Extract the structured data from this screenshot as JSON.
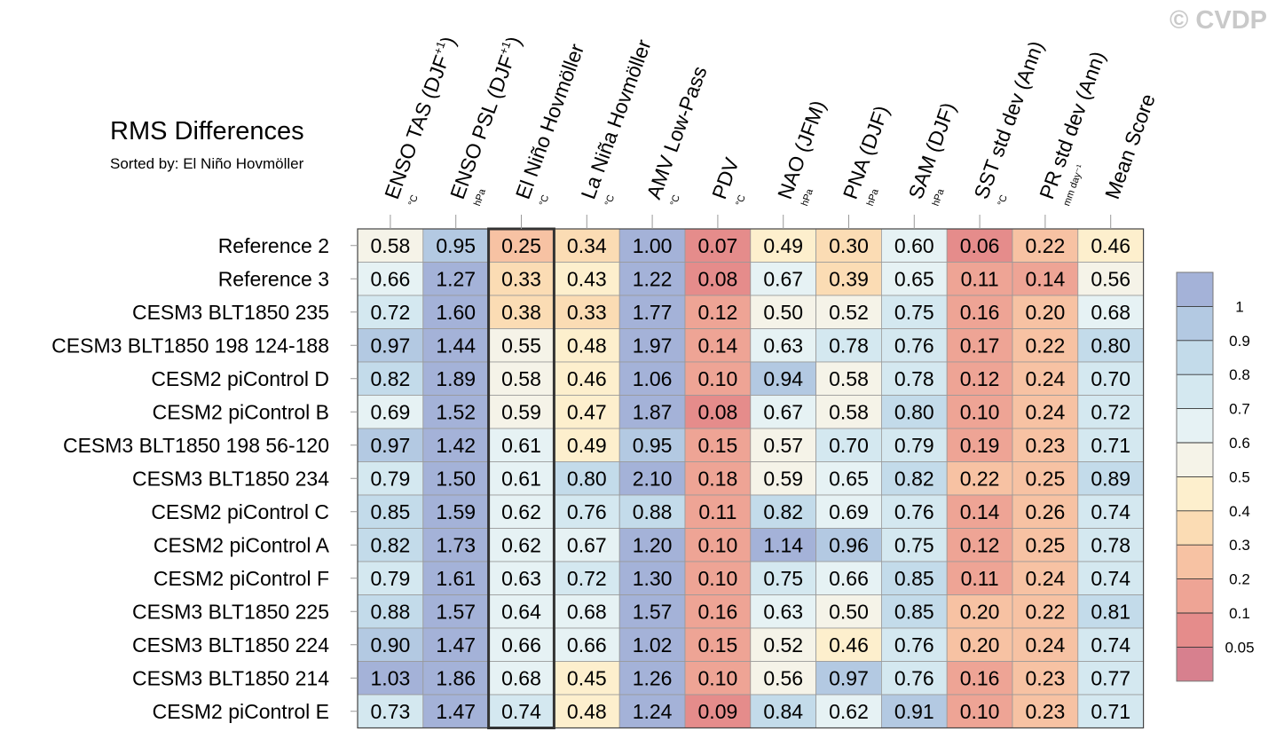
{
  "chart_data": {
    "type": "heatmap",
    "title": "RMS Differences",
    "subtitle": "Sorted by: El Niño Hovmöller",
    "watermark": "© CVDP",
    "highlight_column": 2,
    "columns": [
      {
        "label": "ENSO TAS (DJF",
        "sup": "+1",
        "close": ")",
        "unit": "°C"
      },
      {
        "label": "ENSO PSL (DJF",
        "sup": "+1",
        "close": ")",
        "unit": "hPa"
      },
      {
        "label": "El Niño Hovmöller",
        "sup": "",
        "close": "",
        "unit": "°C"
      },
      {
        "label": "La Niña Hovmöller",
        "sup": "",
        "close": "",
        "unit": "°C"
      },
      {
        "label": "AMV Low-Pass",
        "sup": "",
        "close": "",
        "unit": "°C"
      },
      {
        "label": "PDV",
        "sup": "",
        "close": "",
        "unit": "°C"
      },
      {
        "label": "NAO (JFM)",
        "sup": "",
        "close": "",
        "unit": "hPa"
      },
      {
        "label": "PNA (DJF)",
        "sup": "",
        "close": "",
        "unit": "hPa"
      },
      {
        "label": "SAM (DJF)",
        "sup": "",
        "close": "",
        "unit": "hPa"
      },
      {
        "label": "SST std dev (Ann)",
        "sup": "",
        "close": "",
        "unit": "°C"
      },
      {
        "label": "PR std dev (Ann)",
        "sup": "",
        "close": "",
        "unit": "mm day⁻¹"
      },
      {
        "label": "Mean Score",
        "sup": "",
        "close": "",
        "unit": ""
      }
    ],
    "rows": [
      {
        "name": "Reference 2",
        "values": [
          0.58,
          0.95,
          0.25,
          0.34,
          1.0,
          0.07,
          0.49,
          0.3,
          0.6,
          0.06,
          0.22,
          0.46
        ]
      },
      {
        "name": "Reference 3",
        "values": [
          0.66,
          1.27,
          0.33,
          0.43,
          1.22,
          0.08,
          0.67,
          0.39,
          0.65,
          0.11,
          0.14,
          0.56
        ]
      },
      {
        "name": "CESM3 BLT1850 235",
        "values": [
          0.72,
          1.6,
          0.38,
          0.33,
          1.77,
          0.12,
          0.5,
          0.52,
          0.75,
          0.16,
          0.2,
          0.68
        ]
      },
      {
        "name": "CESM3 BLT1850 198 124-188",
        "values": [
          0.97,
          1.44,
          0.55,
          0.48,
          1.97,
          0.14,
          0.63,
          0.78,
          0.76,
          0.17,
          0.22,
          0.8
        ]
      },
      {
        "name": "CESM2 piControl D",
        "values": [
          0.82,
          1.89,
          0.58,
          0.46,
          1.06,
          0.1,
          0.94,
          0.58,
          0.78,
          0.12,
          0.24,
          0.7
        ]
      },
      {
        "name": "CESM2 piControl B",
        "values": [
          0.69,
          1.52,
          0.59,
          0.47,
          1.87,
          0.08,
          0.67,
          0.58,
          0.8,
          0.1,
          0.24,
          0.72
        ]
      },
      {
        "name": "CESM3 BLT1850 198 56-120",
        "values": [
          0.97,
          1.42,
          0.61,
          0.49,
          0.95,
          0.15,
          0.57,
          0.7,
          0.79,
          0.19,
          0.23,
          0.71
        ]
      },
      {
        "name": "CESM3 BLT1850 234",
        "values": [
          0.79,
          1.5,
          0.61,
          0.8,
          2.1,
          0.18,
          0.59,
          0.65,
          0.82,
          0.22,
          0.25,
          0.89
        ]
      },
      {
        "name": "CESM2 piControl C",
        "values": [
          0.85,
          1.59,
          0.62,
          0.76,
          0.88,
          0.11,
          0.82,
          0.69,
          0.76,
          0.14,
          0.26,
          0.74
        ]
      },
      {
        "name": "CESM2 piControl A",
        "values": [
          0.82,
          1.73,
          0.62,
          0.67,
          1.2,
          0.1,
          1.14,
          0.96,
          0.75,
          0.12,
          0.25,
          0.78
        ]
      },
      {
        "name": "CESM2 piControl F",
        "values": [
          0.79,
          1.61,
          0.63,
          0.72,
          1.3,
          0.1,
          0.75,
          0.66,
          0.85,
          0.11,
          0.24,
          0.74
        ]
      },
      {
        "name": "CESM3 BLT1850 225",
        "values": [
          0.88,
          1.57,
          0.64,
          0.68,
          1.57,
          0.16,
          0.63,
          0.5,
          0.85,
          0.2,
          0.22,
          0.81
        ]
      },
      {
        "name": "CESM3 BLT1850 224",
        "values": [
          0.9,
          1.47,
          0.66,
          0.66,
          1.02,
          0.15,
          0.52,
          0.46,
          0.76,
          0.2,
          0.24,
          0.74
        ]
      },
      {
        "name": "CESM3 BLT1850 214",
        "values": [
          1.03,
          1.86,
          0.68,
          0.45,
          1.26,
          0.1,
          0.56,
          0.97,
          0.76,
          0.16,
          0.23,
          0.77
        ]
      },
      {
        "name": "CESM2 piControl E",
        "values": [
          0.73,
          1.47,
          0.74,
          0.48,
          1.24,
          0.09,
          0.84,
          0.62,
          0.91,
          0.1,
          0.23,
          0.71
        ]
      }
    ],
    "colorbar": {
      "levels": [
        "1",
        "0.9",
        "0.8",
        "0.7",
        "0.6",
        "0.5",
        "0.4",
        "0.3",
        "0.2",
        "0.1",
        "0.05"
      ],
      "level_values": [
        1.0,
        0.9,
        0.8,
        0.7,
        0.6,
        0.5,
        0.4,
        0.3,
        0.2,
        0.1,
        0.05
      ],
      "colors": [
        "#a4b2d8",
        "#b3c9e2",
        "#c3dbea",
        "#d4e8f0",
        "#e6f2f4",
        "#f5f3e8",
        "#fdefcd",
        "#fbdcb4",
        "#f7c2a3",
        "#eea495",
        "#e58c8b",
        "#d7808e"
      ]
    }
  }
}
